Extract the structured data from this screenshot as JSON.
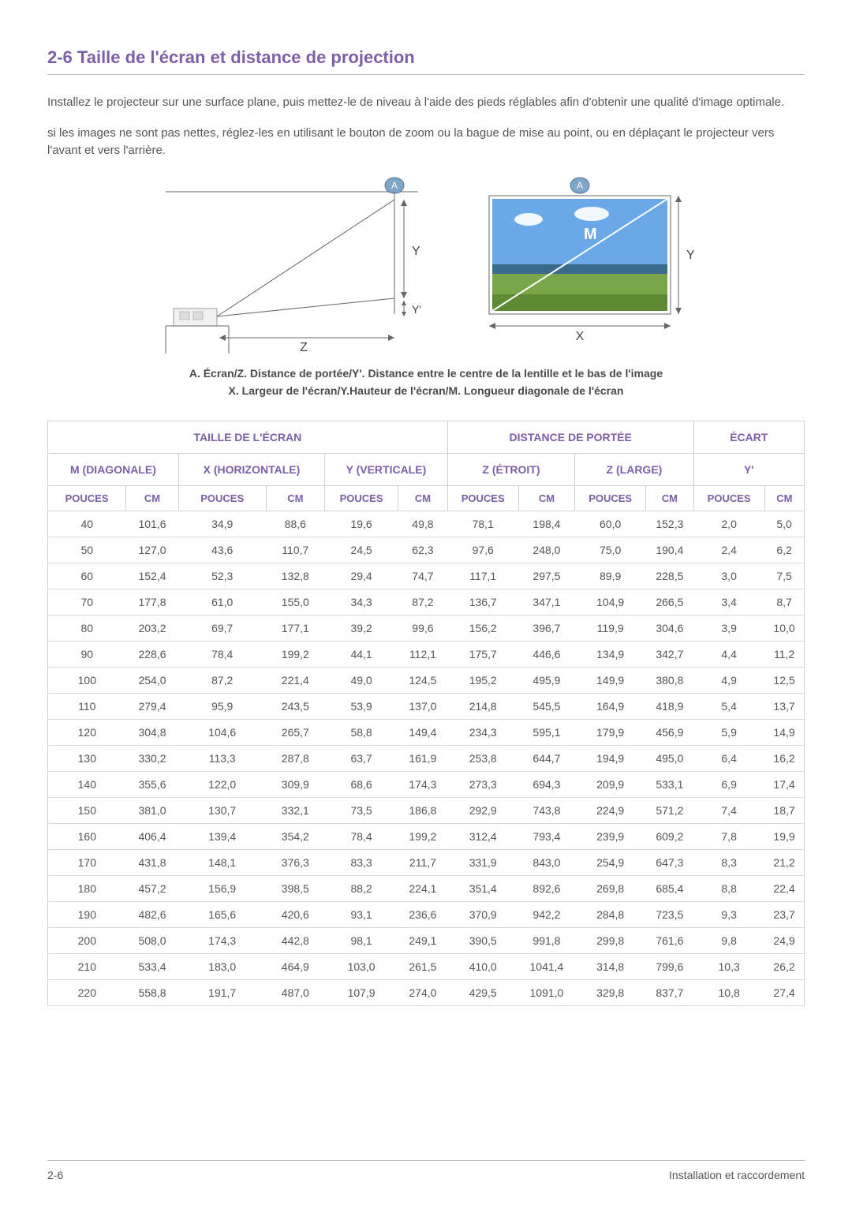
{
  "heading": "2-6   Taille de l'écran et distance de projection",
  "para1": "Installez le projecteur sur une surface plane, puis mettez-le de niveau à l'aide des pieds réglables afin d'obtenir une qualité d'image optimale.",
  "para2": "si les images ne sont pas nettes, réglez-les en utilisant le bouton de zoom ou la bague de mise au point, ou en déplaçant le projecteur vers l'avant et vers l'arrière.",
  "caption1": "A. Écran/Z. Distance de portée/Y'. Distance entre le centre de la lentille et le bas de l'image",
  "caption2": "X. Largeur de l'écran/Y.Hauteur de l'écran/M. Longueur diagonale de l'écran",
  "labels": {
    "A": "A",
    "Y": "Y",
    "Yp": "Y'",
    "Z": "Z",
    "X": "X",
    "M": "M"
  },
  "table": {
    "groupHeaders": {
      "screen": "TAILLE DE L'ÉCRAN",
      "distance": "DISTANCE DE PORTÉE",
      "offset": "ÉCART"
    },
    "subGroups": {
      "m": "M (DIAGONALE)",
      "x": "X (HORIZONTALE)",
      "y": "Y (VERTICALE)",
      "zn": "Z (ÉTROIT)",
      "zl": "Z (LARGE)",
      "yp": "Y'"
    },
    "unitHeaders": {
      "pouces": "POUCES",
      "cm": "CM"
    },
    "rows": [
      [
        "40",
        "101,6",
        "34,9",
        "88,6",
        "19,6",
        "49,8",
        "78,1",
        "198,4",
        "60,0",
        "152,3",
        "2,0",
        "5,0"
      ],
      [
        "50",
        "127,0",
        "43,6",
        "110,7",
        "24,5",
        "62,3",
        "97,6",
        "248,0",
        "75,0",
        "190,4",
        "2,4",
        "6,2"
      ],
      [
        "60",
        "152,4",
        "52,3",
        "132,8",
        "29,4",
        "74,7",
        "117,1",
        "297,5",
        "89,9",
        "228,5",
        "3,0",
        "7,5"
      ],
      [
        "70",
        "177,8",
        "61,0",
        "155,0",
        "34,3",
        "87,2",
        "136,7",
        "347,1",
        "104,9",
        "266,5",
        "3,4",
        "8,7"
      ],
      [
        "80",
        "203,2",
        "69,7",
        "177,1",
        "39,2",
        "99,6",
        "156,2",
        "396,7",
        "119,9",
        "304,6",
        "3,9",
        "10,0"
      ],
      [
        "90",
        "228,6",
        "78,4",
        "199,2",
        "44,1",
        "112,1",
        "175,7",
        "446,6",
        "134,9",
        "342,7",
        "4,4",
        "11,2"
      ],
      [
        "100",
        "254,0",
        "87,2",
        "221,4",
        "49,0",
        "124,5",
        "195,2",
        "495,9",
        "149,9",
        "380,8",
        "4,9",
        "12,5"
      ],
      [
        "110",
        "279,4",
        "95,9",
        "243,5",
        "53,9",
        "137,0",
        "214,8",
        "545,5",
        "164,9",
        "418,9",
        "5,4",
        "13,7"
      ],
      [
        "120",
        "304,8",
        "104,6",
        "265,7",
        "58,8",
        "149,4",
        "234,3",
        "595,1",
        "179,9",
        "456,9",
        "5,9",
        "14,9"
      ],
      [
        "130",
        "330,2",
        "113,3",
        "287,8",
        "63,7",
        "161,9",
        "253,8",
        "644,7",
        "194,9",
        "495,0",
        "6,4",
        "16,2"
      ],
      [
        "140",
        "355,6",
        "122,0",
        "309,9",
        "68,6",
        "174,3",
        "273,3",
        "694,3",
        "209,9",
        "533,1",
        "6,9",
        "17,4"
      ],
      [
        "150",
        "381,0",
        "130,7",
        "332,1",
        "73,5",
        "186,8",
        "292,9",
        "743,8",
        "224,9",
        "571,2",
        "7,4",
        "18,7"
      ],
      [
        "160",
        "406,4",
        "139,4",
        "354,2",
        "78,4",
        "199,2",
        "312,4",
        "793,4",
        "239,9",
        "609,2",
        "7,8",
        "19,9"
      ],
      [
        "170",
        "431,8",
        "148,1",
        "376,3",
        "83,3",
        "211,7",
        "331,9",
        "843,0",
        "254,9",
        "647,3",
        "8,3",
        "21,2"
      ],
      [
        "180",
        "457,2",
        "156,9",
        "398,5",
        "88,2",
        "224,1",
        "351,4",
        "892,6",
        "269,8",
        "685,4",
        "8,8",
        "22,4"
      ],
      [
        "190",
        "482,6",
        "165,6",
        "420,6",
        "93,1",
        "236,6",
        "370,9",
        "942,2",
        "284,8",
        "723,5",
        "9,3",
        "23,7"
      ],
      [
        "200",
        "508,0",
        "174,3",
        "442,8",
        "98,1",
        "249,1",
        "390,5",
        "991,8",
        "299,8",
        "761,6",
        "9,8",
        "24,9"
      ],
      [
        "210",
        "533,4",
        "183,0",
        "464,9",
        "103,0",
        "261,5",
        "410,0",
        "1041,4",
        "314,8",
        "799,6",
        "10,3",
        "26,2"
      ],
      [
        "220",
        "558,8",
        "191,7",
        "487,0",
        "107,9",
        "274,0",
        "429,5",
        "1091,0",
        "329,8",
        "837,7",
        "10,8",
        "27,4"
      ]
    ]
  },
  "footer": {
    "left": "2-6",
    "right": "Installation et raccordement"
  },
  "colors": {
    "accent": "#7b5fa7",
    "border": "#d0d0d0",
    "text": "#555555",
    "badgeFill": "#7ea6c9",
    "badgeStroke": "#5a7a94",
    "sky": "#6aa8e8",
    "grass": "#7aa64a"
  }
}
